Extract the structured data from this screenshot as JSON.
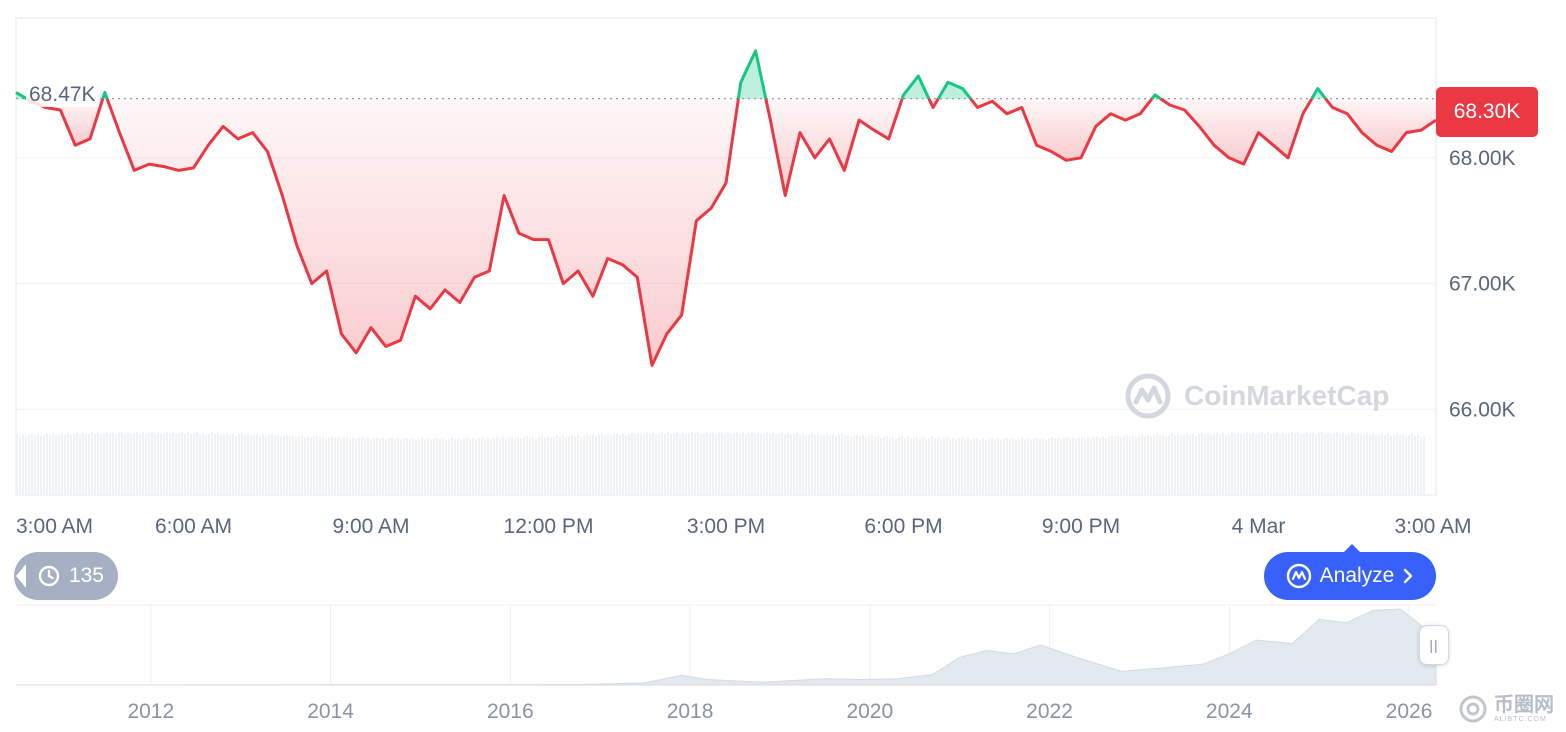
{
  "colors": {
    "up": "#16c784",
    "down": "#ea3943",
    "accent": "#3861fb",
    "grid": "#eff2f5",
    "axis_text": "#58667e",
    "volume": "#eff2f5"
  },
  "chart_data": [
    {
      "type": "area",
      "baseline": 68.47,
      "baseline_label": "68.47K",
      "current_value": 68.3,
      "current_label": "68.30K",
      "ylim": [
        65.9,
        69.0
      ],
      "y_ticks": [
        {
          "value": 68.0,
          "label": "68.00K"
        },
        {
          "value": 67.0,
          "label": "67.00K"
        },
        {
          "value": 66.0,
          "label": "66.00K"
        }
      ],
      "x_ticks": [
        {
          "x": 3,
          "label": "3:00 AM"
        },
        {
          "x": 6,
          "label": "6:00 AM"
        },
        {
          "x": 9,
          "label": "9:00 AM"
        },
        {
          "x": 12,
          "label": "12:00 PM"
        },
        {
          "x": 15,
          "label": "3:00 PM"
        },
        {
          "x": 18,
          "label": "6:00 PM"
        },
        {
          "x": 21,
          "label": "9:00 PM"
        },
        {
          "x": 24,
          "label": "4 Mar"
        },
        {
          "x": 27,
          "label": "3:00 AM"
        }
      ],
      "xlim": [
        3.0,
        27.0
      ],
      "x": [
        3.0,
        3.25,
        3.5,
        3.75,
        4.0,
        4.25,
        4.5,
        4.75,
        5.0,
        5.25,
        5.5,
        5.75,
        6.0,
        6.25,
        6.5,
        6.75,
        7.0,
        7.25,
        7.5,
        7.75,
        8.0,
        8.25,
        8.5,
        8.75,
        9.0,
        9.25,
        9.5,
        9.75,
        10.0,
        10.25,
        10.5,
        10.75,
        11.0,
        11.25,
        11.5,
        11.75,
        12.0,
        12.25,
        12.5,
        12.75,
        13.0,
        13.25,
        13.5,
        13.75,
        14.0,
        14.25,
        14.5,
        14.75,
        15.0,
        15.25,
        15.5,
        15.75,
        16.0,
        16.25,
        16.5,
        16.75,
        17.0,
        17.25,
        17.5,
        17.75,
        18.0,
        18.25,
        18.5,
        18.75,
        19.0,
        19.25,
        19.5,
        19.75,
        20.0,
        20.25,
        20.5,
        20.75,
        21.0,
        21.25,
        21.5,
        21.75,
        22.0,
        22.25,
        22.5,
        22.75,
        23.0,
        23.25,
        23.5,
        23.75,
        24.0,
        24.25,
        24.5,
        24.75,
        25.0,
        25.25,
        25.5,
        25.75,
        26.0,
        26.25,
        26.5,
        26.75,
        27.0
      ],
      "values": [
        68.52,
        68.45,
        68.4,
        68.38,
        68.1,
        68.15,
        68.52,
        68.2,
        67.9,
        67.95,
        67.93,
        67.9,
        67.92,
        68.1,
        68.25,
        68.15,
        68.2,
        68.05,
        67.7,
        67.3,
        67.0,
        67.1,
        66.6,
        66.45,
        66.65,
        66.5,
        66.55,
        66.9,
        66.8,
        66.95,
        66.85,
        67.05,
        67.1,
        67.7,
        67.4,
        67.35,
        67.35,
        67.0,
        67.1,
        66.9,
        67.2,
        67.15,
        67.05,
        66.35,
        66.6,
        66.75,
        67.5,
        67.6,
        67.8,
        68.6,
        68.85,
        68.3,
        67.7,
        68.2,
        68.0,
        68.15,
        67.9,
        68.3,
        68.22,
        68.15,
        68.5,
        68.65,
        68.4,
        68.6,
        68.55,
        68.4,
        68.45,
        68.35,
        68.4,
        68.1,
        68.05,
        67.98,
        68.0,
        68.25,
        68.35,
        68.3,
        68.35,
        68.5,
        68.42,
        68.38,
        68.25,
        68.1,
        68.0,
        67.95,
        68.2,
        68.1,
        68.0,
        68.35,
        68.55,
        68.4,
        68.35,
        68.2,
        68.1,
        68.05,
        68.2,
        68.22,
        68.3
      ],
      "volume_label": "",
      "watermark": "CoinMarketCap"
    },
    {
      "type": "area",
      "role": "navigator",
      "x_ticks": [
        {
          "x": 2012,
          "label": "2012"
        },
        {
          "x": 2014,
          "label": "2014"
        },
        {
          "x": 2016,
          "label": "2016"
        },
        {
          "x": 2018,
          "label": "2018"
        },
        {
          "x": 2020,
          "label": "2020"
        },
        {
          "x": 2022,
          "label": "2022"
        },
        {
          "x": 2024,
          "label": "2024"
        },
        {
          "x": 2026,
          "label": "2026"
        }
      ],
      "xlim": [
        2010.5,
        2026.3
      ],
      "x": [
        2010.5,
        2012,
        2013,
        2014,
        2015,
        2016,
        2016.8,
        2017.5,
        2017.9,
        2018.2,
        2018.8,
        2019.5,
        2019.9,
        2020.3,
        2020.7,
        2021.0,
        2021.3,
        2021.6,
        2021.9,
        2022.3,
        2022.8,
        2023.2,
        2023.7,
        2024.0,
        2024.3,
        2024.7,
        2025.0,
        2025.3,
        2025.6,
        2025.9,
        2026.1,
        2026.3
      ],
      "values": [
        0.0,
        0.0,
        0.1,
        0.5,
        0.3,
        0.4,
        0.7,
        3.0,
        14.0,
        8.0,
        4.0,
        9.0,
        8.0,
        9.0,
        15.0,
        40.0,
        50.0,
        45.0,
        58.0,
        40.0,
        20.0,
        24.0,
        30.0,
        45.0,
        65.0,
        60.0,
        95.0,
        90.0,
        108.0,
        110.0,
        90.0,
        68.0
      ]
    }
  ],
  "ui": {
    "current_price": "68.30K",
    "open_price": "68.47K",
    "history_count": "135",
    "analyze_label": "Analyze",
    "watermark": "CoinMarketCap",
    "site_watermark_text": "币圈网",
    "site_watermark_sub": "ALIBTC.COM"
  }
}
